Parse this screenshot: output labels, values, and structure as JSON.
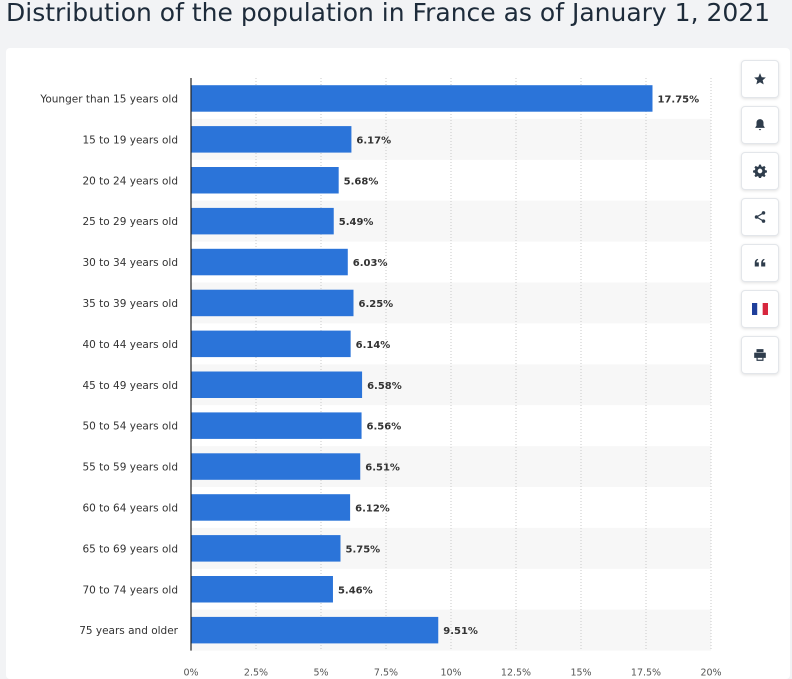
{
  "title": "Distribution of the population in France as of January 1, 2021",
  "chart_data": {
    "type": "bar",
    "orientation": "horizontal",
    "title": "Distribution of the population in France as of January 1, 2021",
    "xlabel": "",
    "ylabel": "",
    "xlim": [
      0,
      20
    ],
    "grid": true,
    "categories": [
      "Younger than 15 years old",
      "15 to 19 years old",
      "20 to 24 years old",
      "25 to 29 years old",
      "30 to 34 years old",
      "35 to 39 years old",
      "40 to 44 years old",
      "45 to 49 years old",
      "50 to 54 years old",
      "55 to 59 years old",
      "60 to 64 years old",
      "65 to 69 years old",
      "70 to 74 years old",
      "75 years and older"
    ],
    "values": [
      17.75,
      6.17,
      5.68,
      5.49,
      6.03,
      6.25,
      6.14,
      6.58,
      6.56,
      6.51,
      6.12,
      5.75,
      5.46,
      9.51
    ],
    "value_labels": [
      "17.75%",
      "6.17%",
      "5.68%",
      "5.49%",
      "6.03%",
      "6.25%",
      "6.14%",
      "6.58%",
      "6.56%",
      "6.51%",
      "6.12%",
      "5.75%",
      "5.46%",
      "9.51%"
    ],
    "ticks": [
      0,
      2.5,
      5,
      7.5,
      10,
      12.5,
      15,
      17.5,
      20
    ],
    "tick_labels": [
      "0%",
      "2.5%",
      "5%",
      "7.5%",
      "10%",
      "12.5%",
      "15%",
      "17.5%",
      "20%"
    ],
    "bar_color": "#2b74d9"
  },
  "toolbar": {
    "items": [
      {
        "name": "star-icon"
      },
      {
        "name": "bell-icon"
      },
      {
        "name": "gear-icon"
      },
      {
        "name": "share-icon"
      },
      {
        "name": "quote-icon"
      },
      {
        "name": "france-flag-icon"
      },
      {
        "name": "print-icon"
      }
    ]
  }
}
